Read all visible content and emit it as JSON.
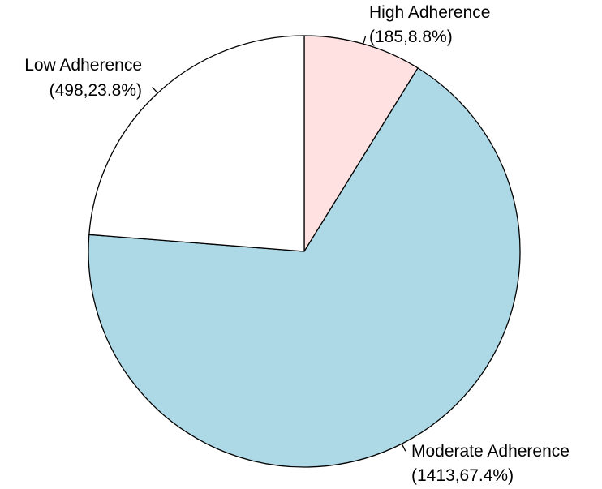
{
  "chart_data": {
    "type": "pie",
    "title": "",
    "start": "12 o'clock",
    "direction": "clockwise",
    "legend": "none",
    "slice_border_color": "#000000",
    "slices": [
      {
        "name": "High Adherence",
        "value": 185,
        "percent": 8.8,
        "value_label": "(185,8.8%)",
        "color": "#FFE1E1"
      },
      {
        "name": "Moderate Adherence",
        "value": 1413,
        "percent": 67.4,
        "value_label": "(1413,67.4%)",
        "color": "#ADD8E6"
      },
      {
        "name": "Low Adherence",
        "value": 498,
        "percent": 23.8,
        "value_label": "(498,23.8%)",
        "color": "#FFFFFF"
      }
    ]
  }
}
